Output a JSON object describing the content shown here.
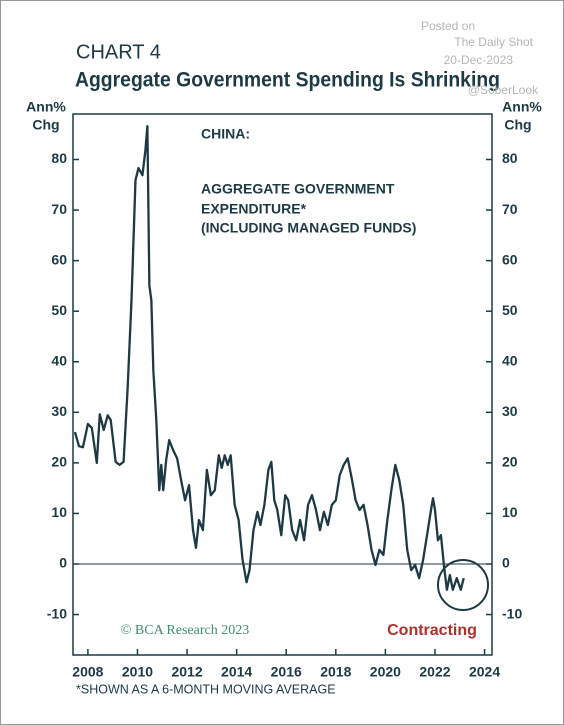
{
  "chart_data": {
    "type": "line",
    "watermark": [
      "Posted on",
      "The Daily Shot",
      "20-Dec-2023",
      "@SoberLook"
    ],
    "kicker": "CHART 4",
    "title": "Aggregate Government Spending Is Shrinking",
    "y_axis_label": [
      "Ann%",
      "Chg"
    ],
    "annotation_heading": "CHINA:",
    "annotation": [
      "AGGREGATE GOVERNMENT",
      "EXPENDITURE*",
      "(INCLUDING MANAGED FUNDS)"
    ],
    "source": "© BCΑ Research 2023",
    "zone_label": "Contracting",
    "footnote": "*SHOWN AS A 6-MONTH MOVING AVERAGE",
    "color": "#1d3a44",
    "xlim": [
      2007.4,
      2024.3
    ],
    "xticks": [
      2008,
      2010,
      2012,
      2014,
      2016,
      2018,
      2020,
      2022,
      2024
    ],
    "ylim": [
      -18,
      89
    ],
    "yticks": [
      -10,
      0,
      10,
      20,
      30,
      40,
      50,
      60,
      70,
      80
    ],
    "x": [
      2007.48,
      2007.64,
      2007.8,
      2008.0,
      2008.16,
      2008.36,
      2008.48,
      2008.64,
      2008.8,
      2008.92,
      2009.12,
      2009.28,
      2009.44,
      2009.6,
      2009.76,
      2009.92,
      2010.04,
      2010.2,
      2010.32,
      2010.4,
      2010.48,
      2010.56,
      2010.64,
      2010.76,
      2010.88,
      2010.96,
      2011.04,
      2011.16,
      2011.28,
      2011.44,
      2011.6,
      2011.76,
      2011.92,
      2012.08,
      2012.24,
      2012.36,
      2012.48,
      2012.64,
      2012.8,
      2012.96,
      2013.12,
      2013.28,
      2013.4,
      2013.52,
      2013.64,
      2013.76,
      2013.92,
      2014.08,
      2014.24,
      2014.4,
      2014.52,
      2014.68,
      2014.84,
      2014.96,
      2015.12,
      2015.28,
      2015.4,
      2015.52,
      2015.64,
      2015.8,
      2015.96,
      2016.08,
      2016.24,
      2016.4,
      2016.56,
      2016.72,
      2016.88,
      2017.04,
      2017.2,
      2017.36,
      2017.52,
      2017.68,
      2017.84,
      2018.0,
      2018.16,
      2018.32,
      2018.48,
      2018.64,
      2018.8,
      2018.96,
      2019.12,
      2019.28,
      2019.44,
      2019.6,
      2019.76,
      2019.92,
      2020.08,
      2020.24,
      2020.4,
      2020.56,
      2020.72,
      2020.88,
      2021.04,
      2021.2,
      2021.36,
      2021.52,
      2021.68,
      2021.84,
      2021.92,
      2022.0,
      2022.12,
      2022.24,
      2022.36,
      2022.48,
      2022.6,
      2022.72,
      2022.88,
      2023.04,
      2023.16
    ],
    "values": [
      26.1,
      23.3,
      23.1,
      27.7,
      26.9,
      20,
      29.6,
      26.5,
      29.4,
      28.5,
      20.2,
      19.6,
      20.2,
      34.4,
      52.2,
      75.9,
      78.3,
      76.9,
      81.8,
      86.6,
      55.1,
      52.2,
      38.3,
      28.5,
      14.6,
      19.6,
      14.6,
      20.6,
      24.5,
      22.5,
      20.9,
      16.6,
      12.6,
      15.6,
      6.7,
      3.2,
      8.7,
      6.7,
      18.6,
      13.6,
      14.6,
      21.5,
      19,
      21.5,
      19.6,
      21.5,
      11.7,
      8.7,
      0.8,
      -3.6,
      -1.2,
      6.7,
      10.3,
      7.7,
      11.7,
      18.6,
      20.2,
      12.6,
      10.7,
      5.7,
      13.6,
      12.6,
      6.7,
      4.7,
      8.7,
      4.7,
      11.7,
      13.6,
      10.7,
      6.7,
      10.3,
      7.7,
      11.7,
      12.6,
      17.6,
      19.6,
      20.9,
      17,
      12.6,
      10.7,
      11.7,
      7.7,
      2.8,
      -0.2,
      2.8,
      1.8,
      8.7,
      14.6,
      19.6,
      16.6,
      11.7,
      2.8,
      -1.2,
      -0.2,
      -2.8,
      0.8,
      5.7,
      10.7,
      13,
      10.7,
      4.7,
      5.7,
      -0.2,
      -5.1,
      -2.2,
      -5.1,
      -2.8,
      -5.1,
      -2.8
    ]
  }
}
